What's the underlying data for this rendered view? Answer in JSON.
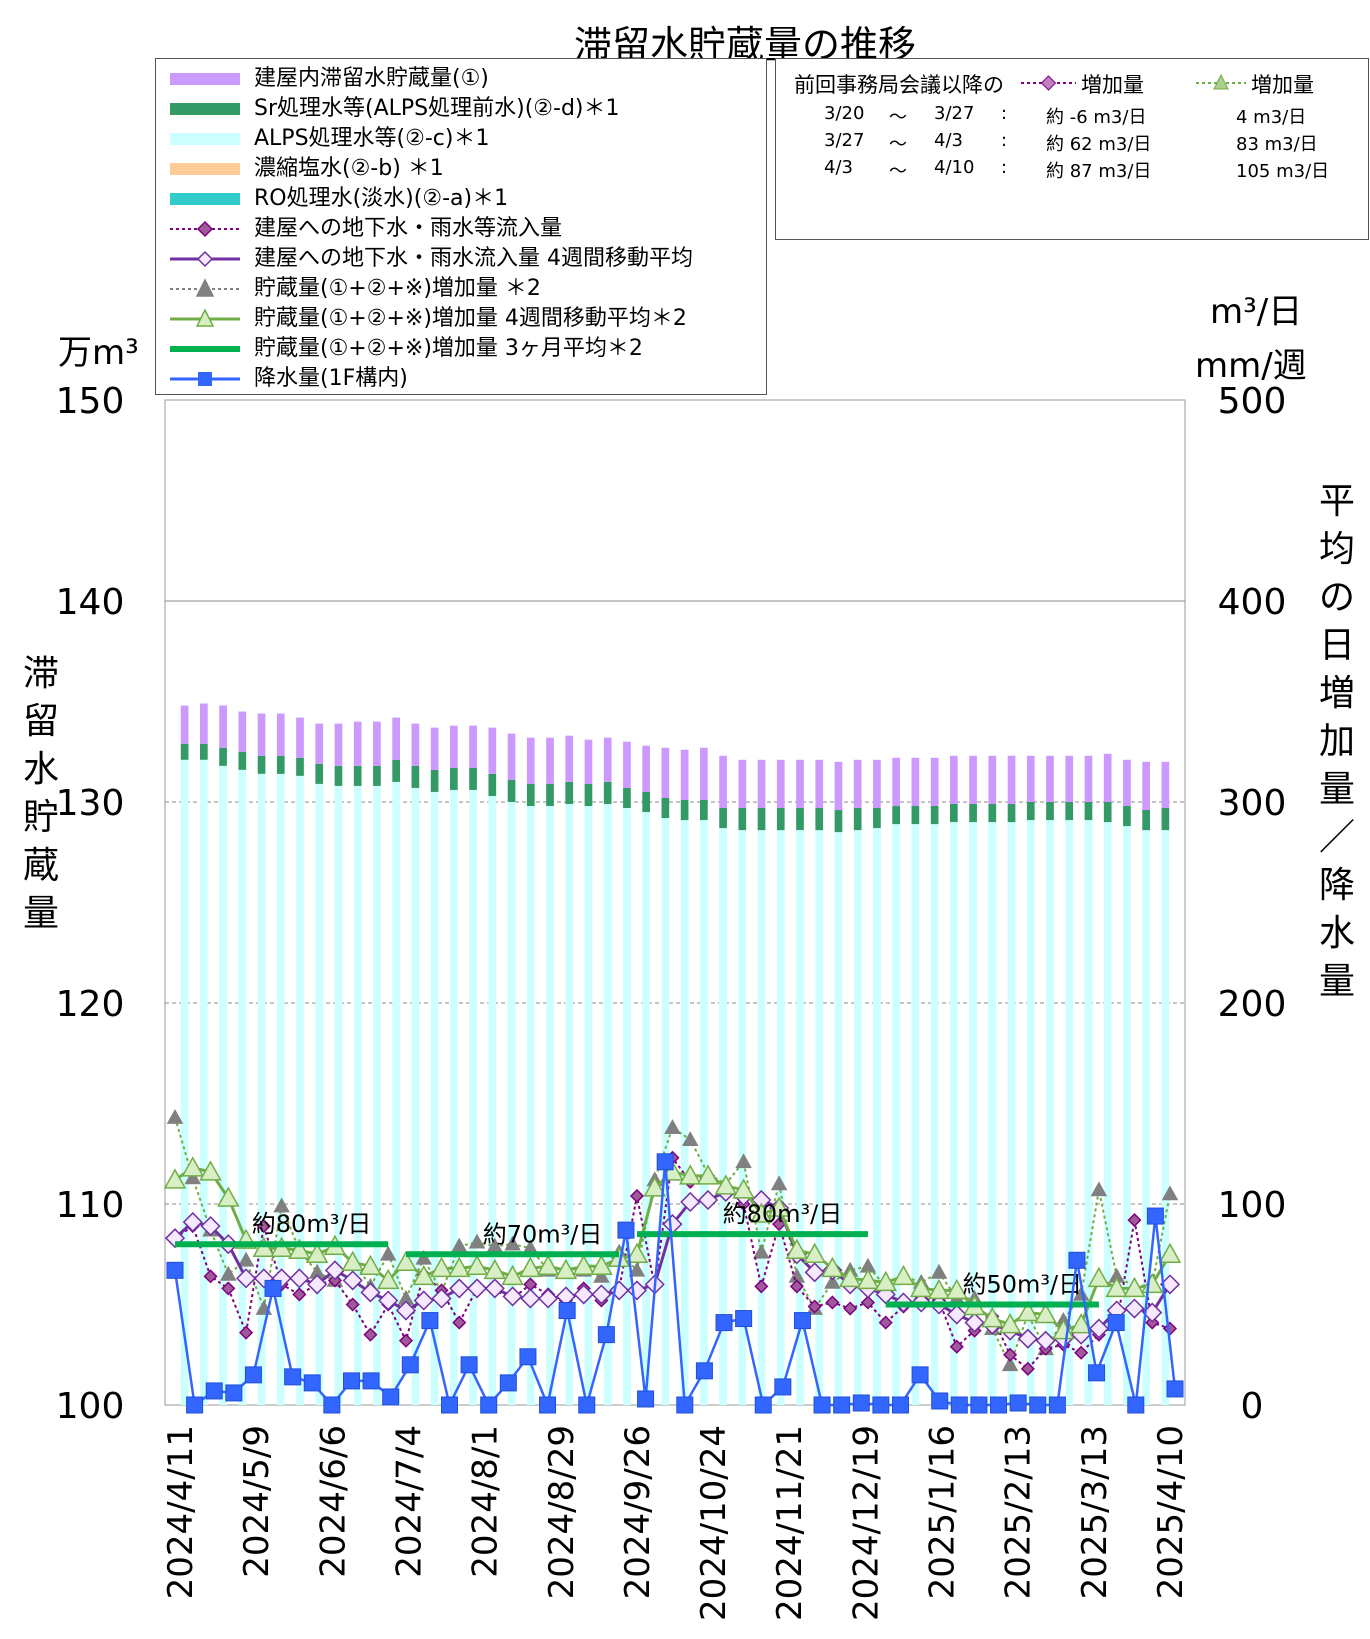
{
  "title": "滞留水貯蔵量の推移",
  "left_unit": "万m³",
  "right_unit_top": "m³/日",
  "right_unit_bottom": "mm/週",
  "left_axis_label": "滞留水貯蔵量",
  "right_axis_label": "平均の日増加量／降水量",
  "legend": [
    {
      "label": "建屋内滞留水貯蔵量(①)",
      "kind": "bar",
      "color": "#cc99ff"
    },
    {
      "label": "Sr処理水等(ALPS処理前水)(②-d)＊1",
      "kind": "bar",
      "color": "#339966"
    },
    {
      "label": "ALPS処理水等(②-c)＊1",
      "kind": "bar",
      "color": "#ccffff"
    },
    {
      "label": "濃縮塩水(②-b) ＊1",
      "kind": "bar",
      "color": "#ffcc99"
    },
    {
      "label": "RO処理水(淡水)(②-a)＊1",
      "kind": "bar",
      "color": "#33cccc"
    },
    {
      "label": "建屋への地下水・雨水等流入量",
      "kind": "dotted-diamond",
      "color": "#800080"
    },
    {
      "label": "建屋への地下水・雨水流入量 4週間移動平均",
      "kind": "line-diamond",
      "color": "#7030a0"
    },
    {
      "label": "貯蔵量(①+②+※)増加量 ＊2",
      "kind": "dotted-triangle",
      "color": "#808080"
    },
    {
      "label": "貯蔵量(①+②+※)増加量 4週間移動平均＊2",
      "kind": "line-triangle",
      "color": "#70ad47"
    },
    {
      "label": "貯蔵量(①+②+※)増加量 3ヶ月平均＊2",
      "kind": "thick-line",
      "color": "#00b050"
    },
    {
      "label": "降水量(1F構内)",
      "kind": "line-square",
      "color": "#3366ff"
    }
  ],
  "info": {
    "header": "前回事務局会議以降の",
    "col1_header": "増加量",
    "col2_header": "増加量",
    "rows": [
      {
        "start": "3/20",
        "tilde": "～",
        "end": "3/27",
        "colon": ":",
        "v1": "約 -6 m3/日",
        "v2": "4 m3/日"
      },
      {
        "start": "3/27",
        "tilde": "～",
        "end": "4/3",
        "colon": ":",
        "v1": "約 62 m3/日",
        "v2": "83 m3/日"
      },
      {
        "start": "4/3",
        "tilde": "～",
        "end": "4/10",
        "colon": ":",
        "v1": "約 87 m3/日",
        "v2": "105 m3/日"
      }
    ]
  },
  "chart_data": {
    "type": "bar",
    "x_ticks": [
      "2024/4/11",
      "2024/5/9",
      "2024/6/6",
      "2024/7/4",
      "2024/8/1",
      "2024/8/29",
      "2024/9/26",
      "2024/10/24",
      "2024/11/21",
      "2024/12/19",
      "2025/1/16",
      "2025/2/13",
      "2025/3/13",
      "2025/4/10"
    ],
    "y_left": {
      "ticks": [
        100,
        110,
        120,
        130,
        140,
        150
      ],
      "ylim": [
        100,
        150
      ]
    },
    "y_right": {
      "ticks": [
        0,
        100,
        200,
        300,
        400,
        500
      ],
      "ylim": [
        0,
        500
      ]
    },
    "grid": true,
    "stack_series": {
      "alps": [
        132.1,
        132.1,
        131.8,
        131.6,
        131.4,
        131.4,
        131.3,
        130.9,
        130.8,
        130.8,
        130.8,
        131.0,
        130.7,
        130.5,
        130.6,
        130.6,
        130.3,
        130.0,
        129.8,
        129.8,
        129.9,
        129.8,
        129.9,
        129.7,
        129.5,
        129.2,
        129.1,
        129.1,
        128.7,
        128.6,
        128.6,
        128.6,
        128.6,
        128.6,
        128.5,
        128.6,
        128.7,
        128.9,
        128.9,
        128.9,
        129.0,
        129.0,
        129.0,
        129.0,
        129.1,
        129.1,
        129.1,
        129.1,
        129.0,
        128.8,
        128.6,
        128.6
      ],
      "sr": [
        0.8,
        0.8,
        0.9,
        0.9,
        0.9,
        0.9,
        0.9,
        1.0,
        1.0,
        1.0,
        1.0,
        1.1,
        1.1,
        1.1,
        1.1,
        1.1,
        1.1,
        1.1,
        1.1,
        1.1,
        1.1,
        1.1,
        1.1,
        1.0,
        1.0,
        1.0,
        1.0,
        1.0,
        1.0,
        1.1,
        1.1,
        1.1,
        1.1,
        1.1,
        1.1,
        1.1,
        1.0,
        0.9,
        0.9,
        0.9,
        0.9,
        0.9,
        0.9,
        0.9,
        0.9,
        0.9,
        0.9,
        0.9,
        1.0,
        1.0,
        1.0,
        1.1
      ],
      "building": [
        1.9,
        2.0,
        2.1,
        2.0,
        2.1,
        2.1,
        2.0,
        2.0,
        2.1,
        2.2,
        2.2,
        2.1,
        2.1,
        2.1,
        2.1,
        2.1,
        2.3,
        2.3,
        2.3,
        2.3,
        2.3,
        2.2,
        2.2,
        2.3,
        2.3,
        2.5,
        2.5,
        2.6,
        2.6,
        2.4,
        2.4,
        2.4,
        2.4,
        2.4,
        2.4,
        2.4,
        2.4,
        2.4,
        2.4,
        2.4,
        2.4,
        2.4,
        2.4,
        2.4,
        2.3,
        2.3,
        2.3,
        2.3,
        2.4,
        2.3,
        2.4,
        2.3
      ]
    },
    "inflow": [
      83,
      89,
      64,
      58,
      36,
      89,
      60,
      55,
      60,
      62,
      50,
      35,
      50,
      32,
      65,
      57,
      41,
      58,
      57,
      53,
      60,
      55,
      52,
      58,
      52,
      58,
      104,
      59,
      123,
      111,
      114,
      107,
      100,
      59,
      90,
      59,
      49,
      51,
      48,
      51,
      41,
      49,
      53,
      52,
      29,
      37,
      44,
      25,
      18,
      28,
      30,
      26,
      35,
      40,
      92,
      41,
      38
    ],
    "inflow_avg": [
      83,
      91,
      89,
      80,
      63,
      63,
      63,
      63,
      60,
      67,
      62,
      56,
      52,
      47,
      52,
      53,
      58,
      58,
      58,
      54,
      53,
      53,
      54,
      55,
      55,
      57,
      57,
      60,
      90,
      101,
      102,
      106,
      104,
      102,
      98,
      75,
      66,
      67,
      60,
      58,
      55,
      51,
      51,
      50,
      45,
      41,
      40,
      37,
      33,
      32,
      33,
      35,
      38,
      47,
      48,
      46,
      60
    ],
    "storage_increase": [
      143,
      113,
      87,
      65,
      72,
      48,
      99,
      77,
      66,
      62,
      72,
      59,
      75,
      53,
      73,
      56,
      79,
      81,
      79,
      80,
      78,
      67,
      68,
      67,
      64,
      76,
      67,
      112,
      138,
      132,
      115,
      110,
      121,
      76,
      110,
      64,
      48,
      61,
      67,
      69,
      59,
      64,
      61,
      66,
      53,
      53,
      38,
      20,
      45,
      28,
      42,
      55,
      107,
      64,
      59,
      60,
      105
    ],
    "storage_avg": [
      112,
      118,
      116,
      103,
      82,
      78,
      78,
      77,
      75,
      79,
      71,
      69,
      62,
      71,
      64,
      68,
      68,
      69,
      67,
      64,
      68,
      69,
      67,
      69,
      69,
      73,
      75,
      108,
      116,
      114,
      114,
      109,
      107,
      95,
      98,
      77,
      75,
      68,
      63,
      62,
      61,
      64,
      58,
      57,
      57,
      49,
      43,
      40,
      46,
      45,
      37,
      40,
      63,
      58,
      58,
      60,
      75
    ],
    "storage_3month": [
      {
        "label": "約80m³/日",
        "value": 80,
        "from": 0,
        "to": 12
      },
      {
        "label": "約70m³/日",
        "value": 75,
        "from": 13,
        "to": 25
      },
      {
        "label": "約80m³/日",
        "value": 85,
        "from": 26,
        "to": 39
      },
      {
        "label": "約50m³/日",
        "value": 50,
        "from": 40,
        "to": 52
      }
    ],
    "rainfall": [
      67,
      0,
      7,
      6,
      15,
      58,
      14,
      11,
      0,
      12,
      12,
      4,
      20,
      42,
      0,
      20,
      0,
      11,
      24,
      0,
      47,
      0,
      35,
      87,
      3,
      121,
      0,
      17,
      41,
      43,
      0,
      9,
      42,
      0,
      0,
      1,
      0,
      0,
      15,
      2,
      0,
      0,
      0,
      1,
      0,
      0,
      72,
      16,
      41,
      0,
      94,
      8
    ]
  }
}
